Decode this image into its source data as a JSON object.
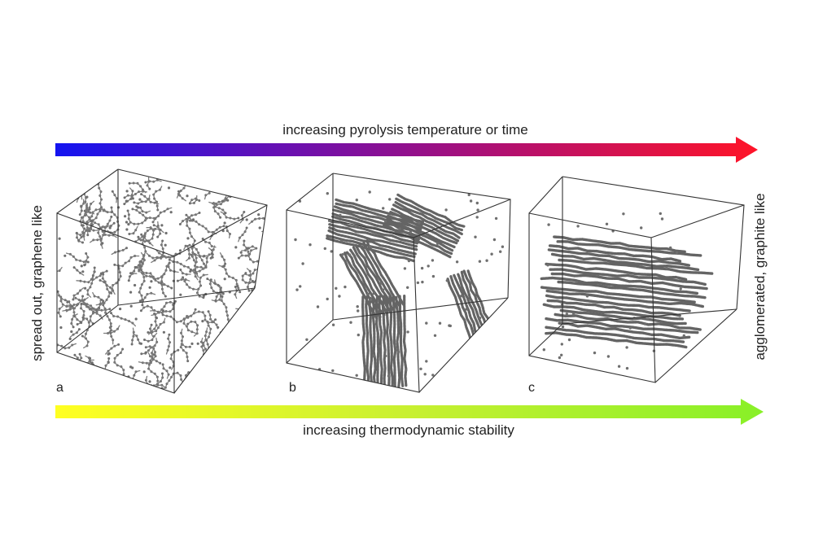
{
  "top_arrow": {
    "label": "increasing pyrolysis temperature or time",
    "gradient": [
      "#1414f0",
      "#6a10b0",
      "#b8106a",
      "#ff1428"
    ]
  },
  "bottom_arrow": {
    "label": "increasing thermodynamic stability",
    "gradient": [
      "#ffff22",
      "#c8f030",
      "#88f028"
    ]
  },
  "left_label": "spread out, graphene like",
  "right_label": "agglomerated, graphite like",
  "panels": [
    {
      "id": "a",
      "label": "a",
      "structure": "dispersed"
    },
    {
      "id": "b",
      "label": "b",
      "structure": "intermediate"
    },
    {
      "id": "c",
      "label": "c",
      "structure": "stacked"
    }
  ],
  "colors": {
    "atoms": "#6f6f6f",
    "cube_edges": "#333333"
  }
}
